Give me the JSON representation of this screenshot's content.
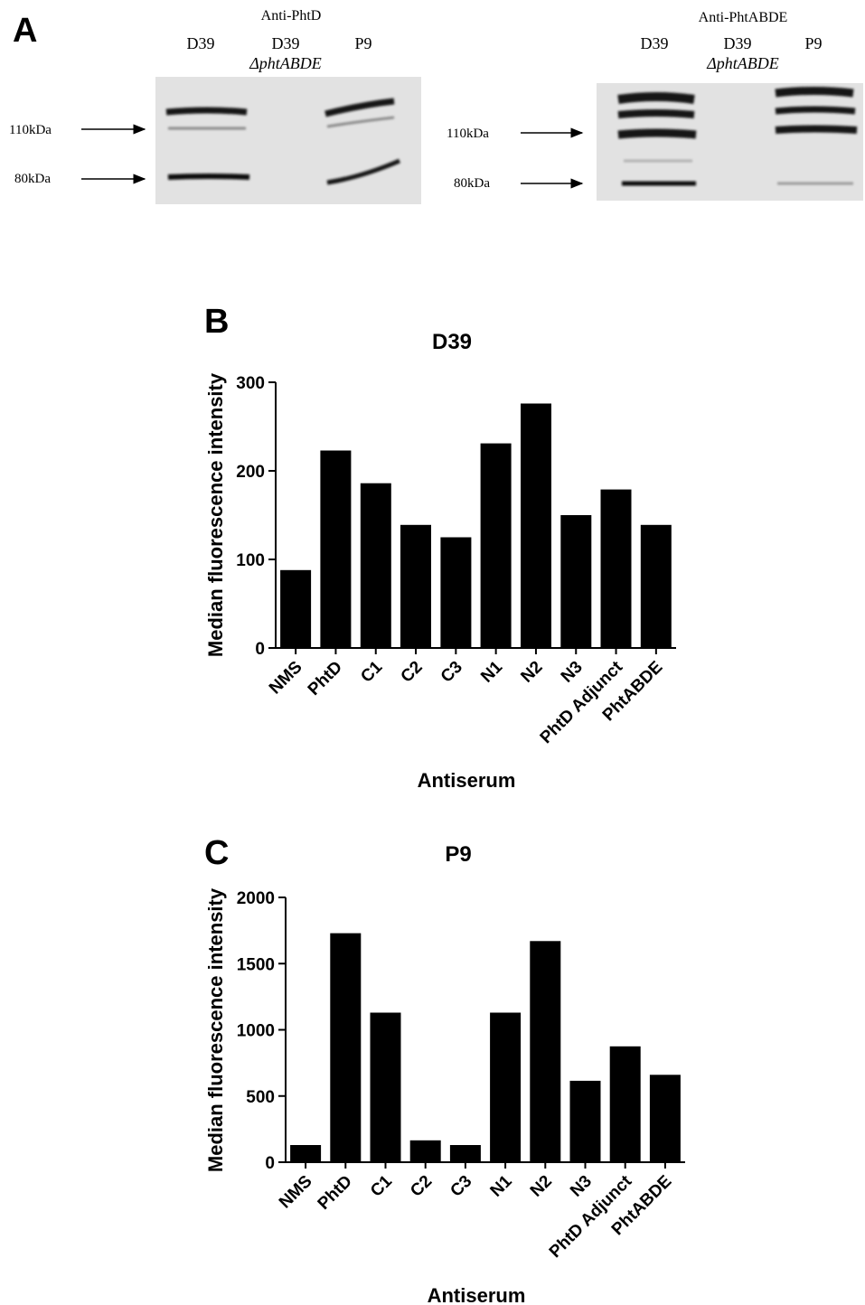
{
  "panel_a": {
    "letter": "A",
    "blots": [
      {
        "title": "Anti-PhtD",
        "lanes": [
          "D39",
          "D39",
          "P9"
        ],
        "lane_sub": "ΔphtABDE",
        "markers": [
          "110kDa",
          "80kDa"
        ]
      },
      {
        "title": "Anti-PhtABDE",
        "lanes": [
          "D39",
          "D39",
          "P9"
        ],
        "lane_sub": "ΔphtABDE",
        "markers": [
          "110kDa",
          "80kDa"
        ]
      }
    ]
  },
  "chart_data": [
    {
      "panel": "B",
      "type": "bar",
      "title": "D39",
      "xlabel": "Antiserum",
      "ylabel": "Median fluorescence intensity",
      "categories": [
        "NMS",
        "PhtD",
        "C1",
        "C2",
        "C3",
        "N1",
        "N2",
        "N3",
        "PhtD Adjunct",
        "PhtABDE"
      ],
      "values": [
        88,
        223,
        186,
        139,
        125,
        231,
        276,
        150,
        179,
        139
      ],
      "ylim": [
        0,
        300
      ],
      "yticks": [
        0,
        100,
        200,
        300
      ],
      "bar_color": "#000000",
      "grid": false,
      "legend": "none"
    },
    {
      "panel": "C",
      "type": "bar",
      "title": "P9",
      "xlabel": "Antiserum",
      "ylabel": "Median fluorescence intensity",
      "categories": [
        "NMS",
        "PhtD",
        "C1",
        "C2",
        "C3",
        "N1",
        "N2",
        "N3",
        "PhtD Adjunct",
        "PhtABDE"
      ],
      "values": [
        130,
        1730,
        1130,
        165,
        130,
        1130,
        1670,
        615,
        875,
        660
      ],
      "ylim": [
        0,
        2000
      ],
      "yticks": [
        0,
        500,
        1000,
        1500,
        2000
      ],
      "bar_color": "#000000",
      "grid": false,
      "legend": "none"
    }
  ]
}
